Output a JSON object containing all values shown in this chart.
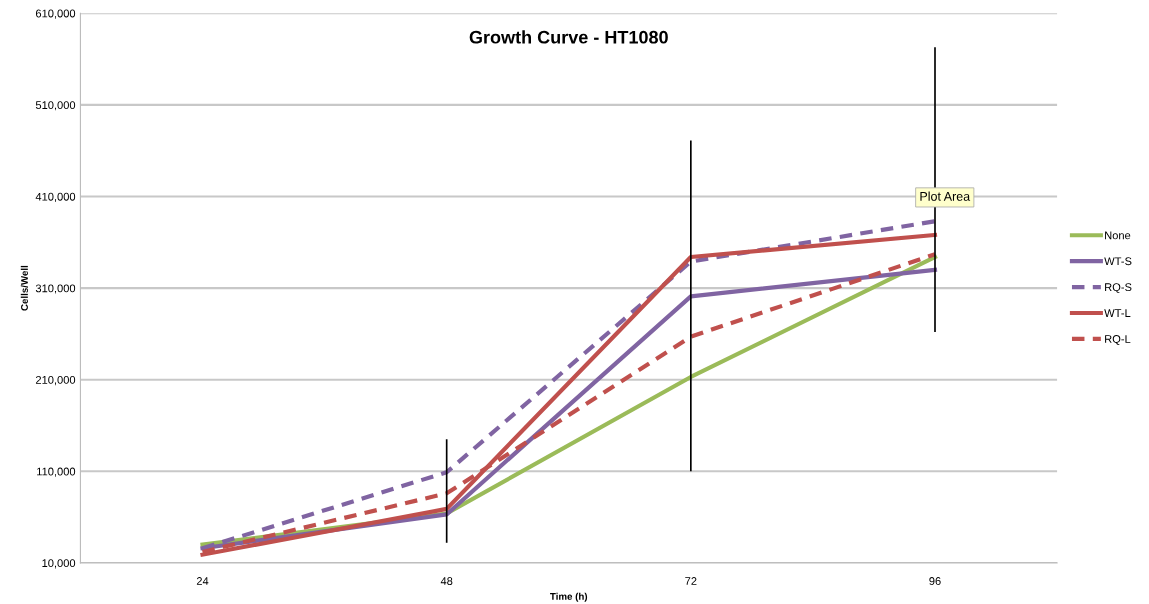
{
  "chart_data": {
    "type": "line",
    "title": "Growth Curve - HT1080",
    "xlabel": "Time (h)",
    "ylabel": "Cells/Well",
    "categories": [
      "24",
      "48",
      "72",
      "96"
    ],
    "series": [
      {
        "name": "None",
        "color": "#9bbb59",
        "line_style": "solid",
        "values": [
          30000,
          64000,
          213000,
          344000
        ]
      },
      {
        "name": "WT-S",
        "color": "#8064a2",
        "line_style": "solid",
        "values": [
          26000,
          63000,
          301000,
          330000
        ],
        "errors": [
          null,
          null,
          [
            110000,
            471000
          ],
          null
        ]
      },
      {
        "name": "RQ-S",
        "color": "#8064a2",
        "line_style": "dashed",
        "values": [
          26000,
          109000,
          339000,
          383000
        ],
        "errors": [
          null,
          [
            32000,
            145000
          ],
          null,
          [
            262000,
            573000
          ]
        ]
      },
      {
        "name": "WT-L",
        "color": "#c0504d",
        "line_style": "solid",
        "values": [
          19000,
          69000,
          344000,
          368000
        ]
      },
      {
        "name": "RQ-L",
        "color": "#c0504d",
        "line_style": "dashed",
        "values": [
          22000,
          86000,
          257000,
          347000
        ]
      }
    ],
    "ylim": [
      10000,
      610000
    ],
    "yticks": [
      {
        "value": 10000,
        "label": "10,000"
      },
      {
        "value": 110000,
        "label": "110,000"
      },
      {
        "value": 210000,
        "label": "210,000"
      },
      {
        "value": 310000,
        "label": "310,000"
      },
      {
        "value": 410000,
        "label": "410,000"
      },
      {
        "value": 510000,
        "label": "510,000"
      },
      {
        "value": 610000,
        "label": "610,000"
      }
    ],
    "grid": "y",
    "legend": "right",
    "marker": "none",
    "annotations": [
      "Plot Area"
    ]
  }
}
